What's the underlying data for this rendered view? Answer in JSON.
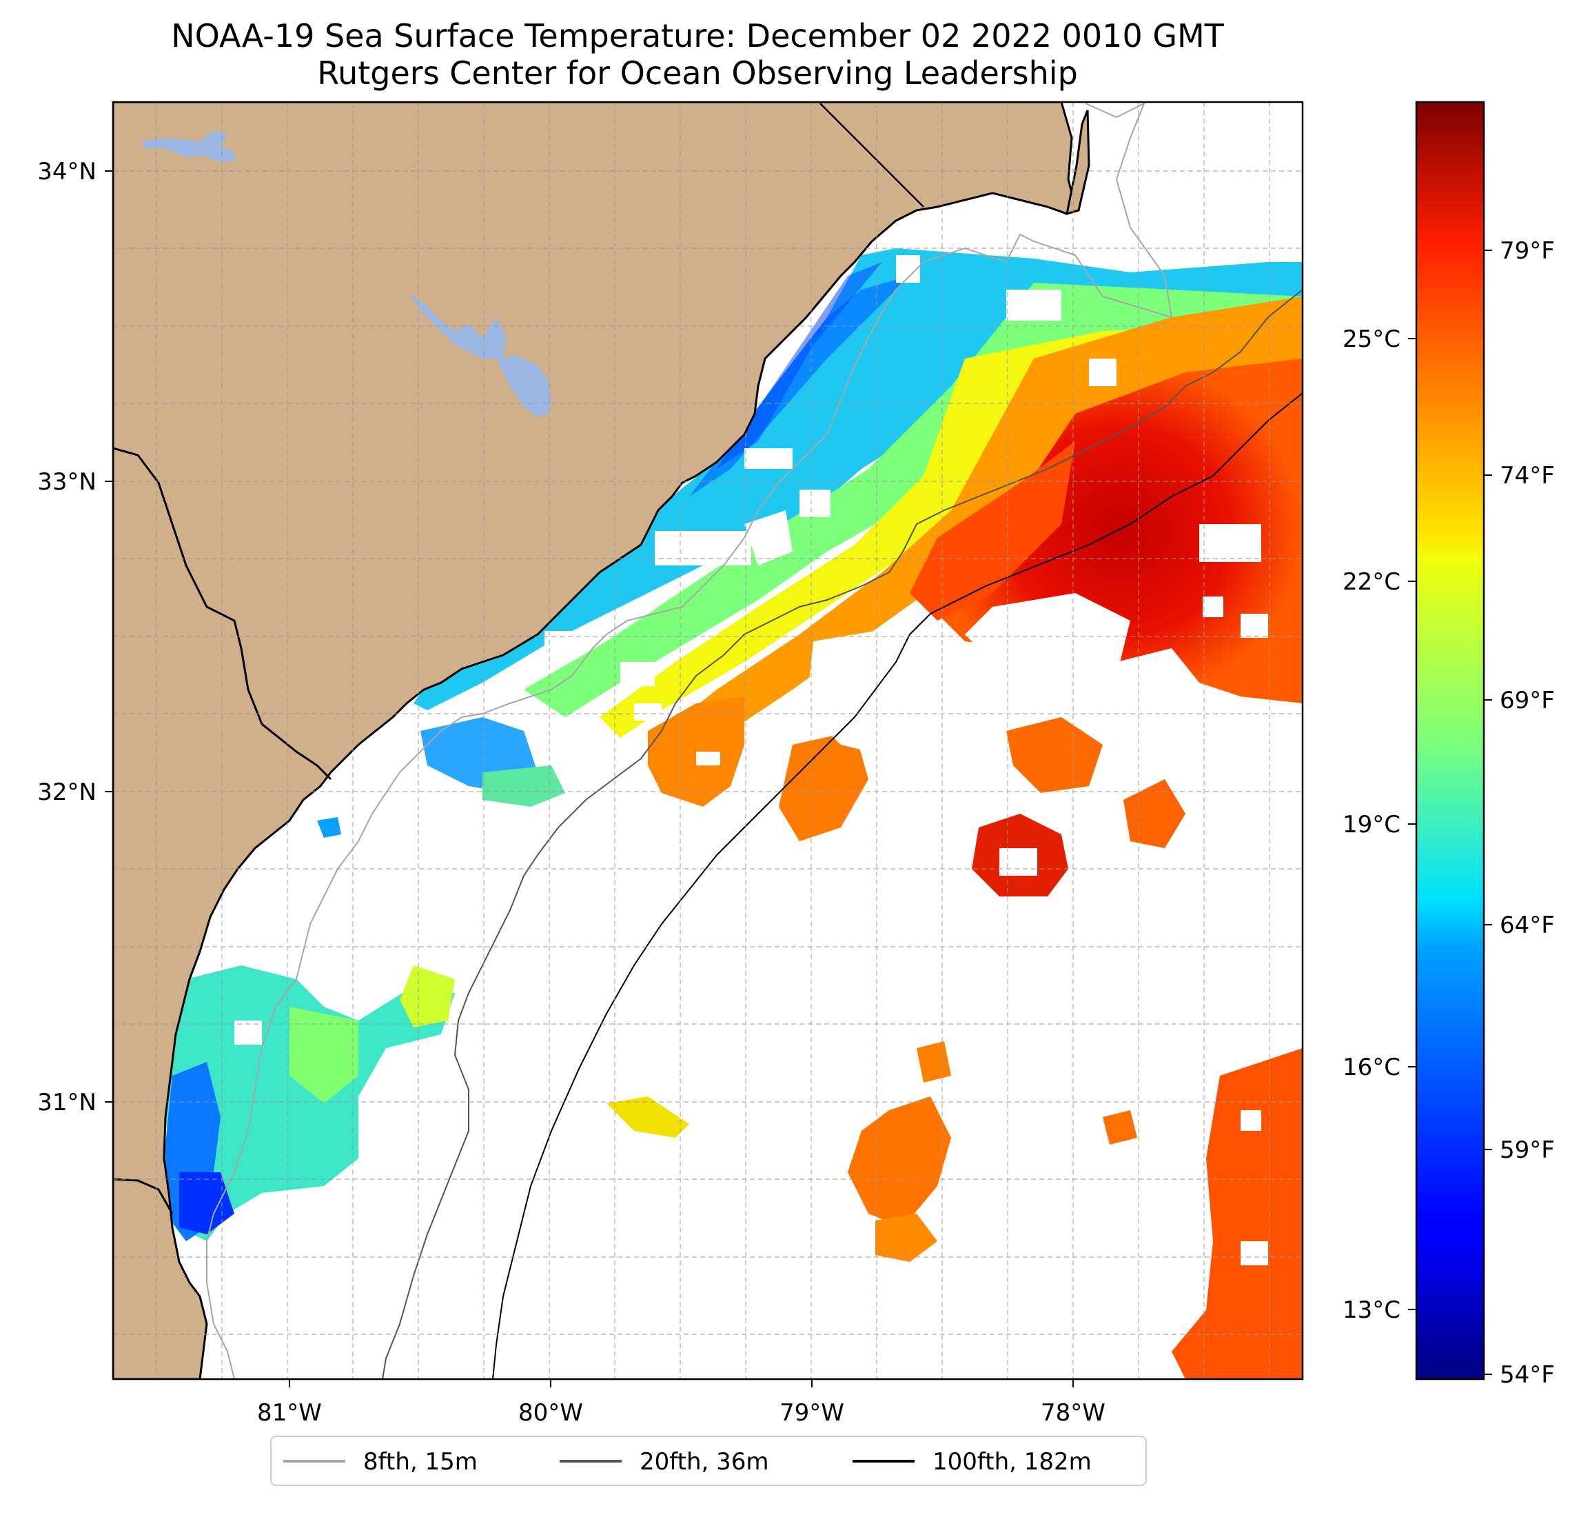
{
  "title": "NOAA-19 Sea Surface Temperature: December 02 2022 0010 GMT",
  "subtitle": "Rutgers Center for Ocean Observing Leadership",
  "map": {
    "lon_labels": [
      "81°W",
      "80°W",
      "79°W",
      "78°W"
    ],
    "lat_labels": [
      "34°N",
      "33°N",
      "32°N",
      "31°N"
    ],
    "gridlines": true,
    "colors": {
      "land": "#cfb08a",
      "lakes": "#9ab8e3",
      "ocean_nodata": "#ffffff"
    }
  },
  "colorbar": {
    "colormap": "jet",
    "celsius_labels": [
      "25°C",
      "22°C",
      "19°C",
      "16°C",
      "13°C"
    ],
    "fahrenheit_labels": [
      "79°F",
      "74°F",
      "69°F",
      "64°F",
      "59°F",
      "54°F"
    ]
  },
  "legend": {
    "position": "bottom-center",
    "items": [
      {
        "label": "8fth, 15m",
        "color": "#a6a6a6"
      },
      {
        "label": "20fth, 36m",
        "color": "#555555"
      },
      {
        "label": "100fth, 182m",
        "color": "#000000"
      }
    ]
  }
}
